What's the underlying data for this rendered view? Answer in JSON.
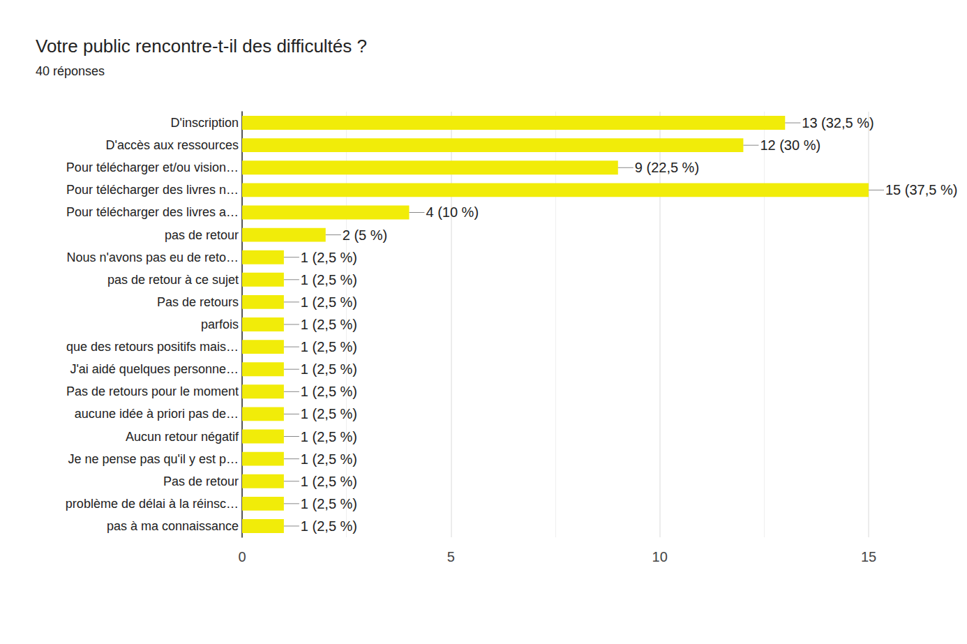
{
  "chart_data": {
    "type": "bar",
    "orientation": "horizontal",
    "title": "Votre public rencontre-t-il des difficultés ?",
    "subtitle": "40 réponses",
    "categories": [
      "D'inscription",
      "D'accès aux ressources",
      "Pour télécharger et/ou vision…",
      "Pour télécharger des livres n…",
      "Pour télécharger des livres a…",
      "pas de retour",
      "Nous n'avons pas eu de reto…",
      "pas de retour à ce sujet",
      "Pas de retours",
      "parfois",
      "que des retours positifs mais…",
      "J'ai aidé quelques personne…",
      "Pas de retours pour le moment",
      "aucune idée à priori pas de…",
      "Aucun retour négatif",
      "Je ne pense pas qu'il y est p…",
      "Pas de retour",
      "problème de délai à la réinsc…",
      "pas à ma connaissance"
    ],
    "values": [
      13,
      12,
      9,
      15,
      4,
      2,
      1,
      1,
      1,
      1,
      1,
      1,
      1,
      1,
      1,
      1,
      1,
      1,
      1
    ],
    "value_labels": [
      "13 (32,5 %)",
      "12 (30 %)",
      "9 (22,5 %)",
      "15 (37,5 %)",
      "4 (10 %)",
      "2 (5 %)",
      "1 (2,5 %)",
      "1 (2,5 %)",
      "1 (2,5 %)",
      "1 (2,5 %)",
      "1 (2,5 %)",
      "1 (2,5 %)",
      "1 (2,5 %)",
      "1 (2,5 %)",
      "1 (2,5 %)",
      "1 (2,5 %)",
      "1 (2,5 %)",
      "1 (2,5 %)",
      "1 (2,5 %)"
    ],
    "color": "#f1ec09",
    "xlim": [
      0,
      15
    ],
    "xticks": [
      0,
      5,
      10,
      15
    ],
    "grid": true,
    "data_labels": true
  }
}
